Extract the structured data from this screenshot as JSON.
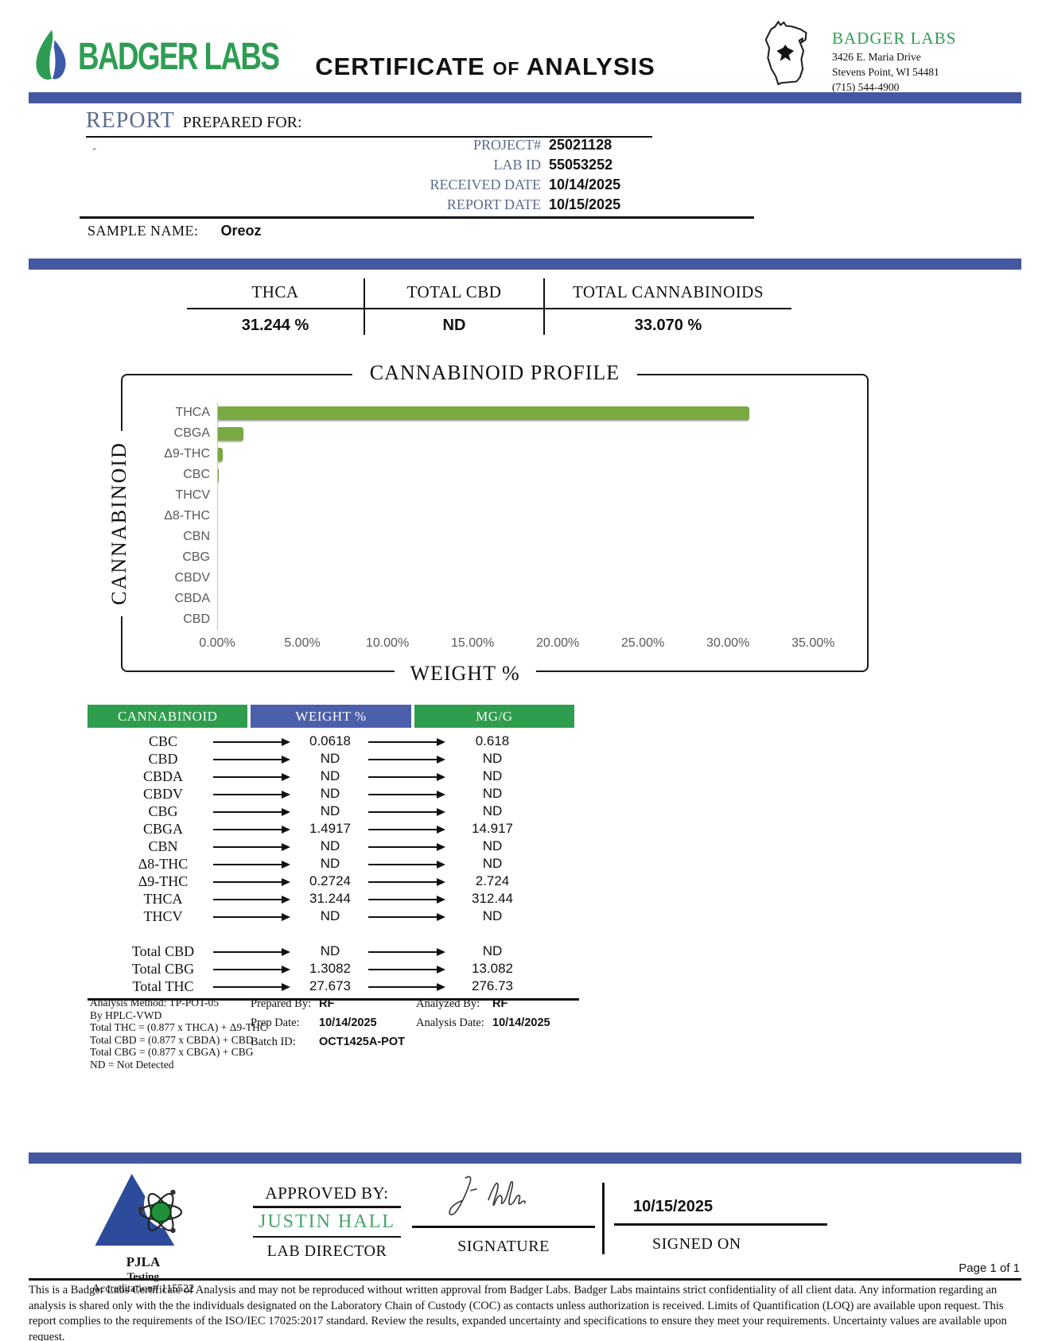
{
  "header": {
    "brand": "BADGER LABS",
    "title_part1": "CERTIFICATE",
    "title_of": "OF",
    "title_part2": "ANALYSIS",
    "lab_info": {
      "name": "BADGER LABS",
      "address_line1": "3426 E. Maria Drive",
      "address_line2": "Stevens Point, WI 54481",
      "phone": "(715) 544-4900"
    }
  },
  "report": {
    "heading_main": "REPORT",
    "heading_sub": "PREPARED FOR:",
    "client_placeholder": "-",
    "fields": [
      {
        "label": "PROJECT#",
        "value": "25021128"
      },
      {
        "label": "LAB ID",
        "value": "55053252"
      },
      {
        "label": "RECEIVED DATE",
        "value": "10/14/2025"
      },
      {
        "label": "REPORT DATE",
        "value": "10/15/2025"
      }
    ],
    "sample_name_label": "SAMPLE NAME:",
    "sample_name": "Oreoz"
  },
  "summary": {
    "columns": [
      {
        "label": "THCA",
        "value": "31.244 %"
      },
      {
        "label": "TOTAL CBD",
        "value": "ND"
      },
      {
        "label": "TOTAL CANNABINOIDS",
        "value": "33.070 %"
      }
    ]
  },
  "chart_data": {
    "type": "bar",
    "orientation": "horizontal",
    "title": "CANNABINOID PROFILE",
    "xlabel": "WEIGHT %",
    "ylabel": "CANNABINOID",
    "categories": [
      "THCA",
      "CBGA",
      "Δ9-THC",
      "CBC",
      "THCV",
      "Δ8-THC",
      "CBN",
      "CBG",
      "CBDV",
      "CBDA",
      "CBD"
    ],
    "values": [
      31.244,
      1.4917,
      0.2724,
      0.0618,
      0,
      0,
      0,
      0,
      0,
      0,
      0
    ],
    "xlim": [
      0,
      35
    ],
    "x_ticks": [
      "0.00%",
      "5.00%",
      "10.00%",
      "15.00%",
      "20.00%",
      "25.00%",
      "30.00%",
      "35.00%"
    ],
    "grid": false,
    "bar_color": "#7aa942"
  },
  "table": {
    "headers": [
      "CANNABINOID",
      "WEIGHT %",
      "MG/G"
    ],
    "rows": [
      {
        "name": "CBC",
        "weight": "0.0618",
        "mgg": "0.618"
      },
      {
        "name": "CBD",
        "weight": "ND",
        "mgg": "ND"
      },
      {
        "name": "CBDA",
        "weight": "ND",
        "mgg": "ND"
      },
      {
        "name": "CBDV",
        "weight": "ND",
        "mgg": "ND"
      },
      {
        "name": "CBG",
        "weight": "ND",
        "mgg": "ND"
      },
      {
        "name": "CBGA",
        "weight": "1.4917",
        "mgg": "14.917"
      },
      {
        "name": "CBN",
        "weight": "ND",
        "mgg": "ND"
      },
      {
        "name": "Δ8-THC",
        "weight": "ND",
        "mgg": "ND"
      },
      {
        "name": "Δ9-THC",
        "weight": "0.2724",
        "mgg": "2.724"
      },
      {
        "name": "THCA",
        "weight": "31.244",
        "mgg": "312.44"
      },
      {
        "name": "THCV",
        "weight": "ND",
        "mgg": "ND"
      }
    ],
    "totals": [
      {
        "name": "Total CBD",
        "weight": "ND",
        "mgg": "ND"
      },
      {
        "name": "Total CBG",
        "weight": "1.3082",
        "mgg": "13.082"
      },
      {
        "name": "Total THC",
        "weight": "27.673",
        "mgg": "276.73"
      }
    ]
  },
  "notes": {
    "method_lines": [
      "Analysis Method: TP-POT-05",
      "By HPLC-VWD",
      "Total THC = (0.877 x  THCA) + Δ9-THC",
      "Total CBD = (0.877 x  CBDA) + CBD",
      "Total CBG = (0.877 x  CBGA) + CBG",
      "ND = Not Detected"
    ],
    "prepared_by_label": "Prepared By:",
    "prepared_by": "RF",
    "prep_date_label": "Prep Date:",
    "prep_date": "10/14/2025",
    "batch_id_label": "Batch ID:",
    "batch_id": "OCT1425A-POT",
    "analyzed_by_label": "Analyzed By:",
    "analyzed_by": "RF",
    "analysis_date_label": "Analysis Date:",
    "analysis_date": "10/14/2025"
  },
  "footer": {
    "accreditation": {
      "org": "PJLA",
      "program": "Testing",
      "number": "Accreditation# 115522"
    },
    "approved_by_label": "APPROVED BY:",
    "approver_name": "JUSTIN HALL",
    "approver_title": "LAB DIRECTOR",
    "signature_label": "SIGNATURE",
    "signed_on_date": "10/15/2025",
    "signed_on_label": "SIGNED ON",
    "page_label": "Page 1 of 1",
    "disclaimer": "This is a Badger Labs Certificate of Analysis and may not be reproduced without written approval from Badger Labs. Badger Labs maintains strict confidentiality of all client data. Any information regarding an analysis is shared only with the the individuals designated on the Laboratory Chain of Custody (COC) as contacts unless authorization is received. Limits of Quantification (LOQ) are available upon request. This report complies to the requirements of the ISO/IEC 17025:2017 standard. Review the results, expanded uncertainty and specifications to ensure they meet your requirements. Uncertainty values are available upon request."
  },
  "colors": {
    "divider_blue": "#4457a0",
    "table_header_green": "#2e9d4d",
    "table_header_blue": "#4c5fab",
    "bar_green": "#7aa942",
    "brand_green": "#2e9d53",
    "field_label_blue": "#5c6b8e",
    "approver_green": "#46a36b"
  }
}
